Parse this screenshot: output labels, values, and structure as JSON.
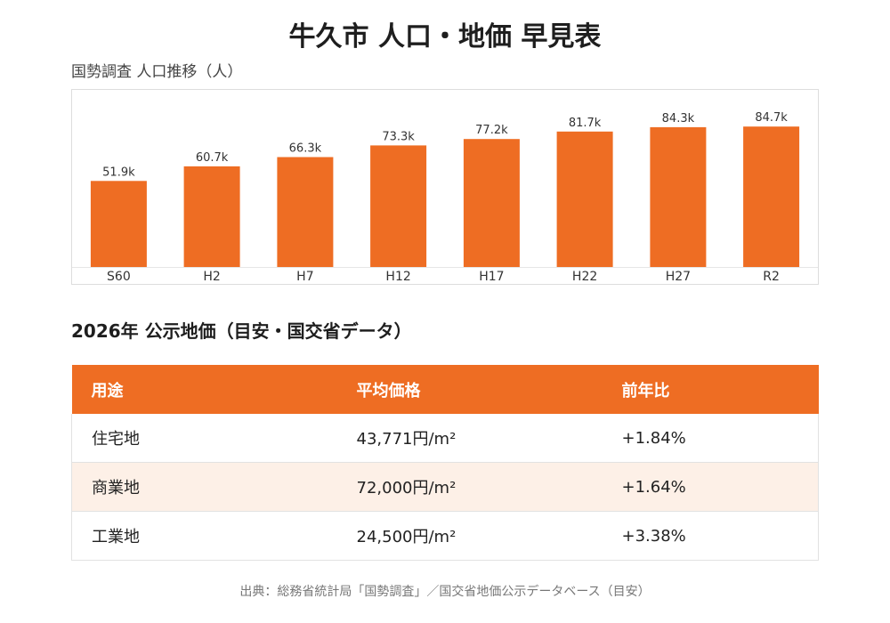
{
  "page": {
    "title": "牛久市 人口・地価 早見表"
  },
  "chart_data": {
    "type": "bar",
    "title": "国勢調査 人口推移（人）",
    "categories": [
      "S60",
      "H2",
      "H7",
      "H12",
      "H17",
      "H22",
      "H27",
      "R2"
    ],
    "values": [
      51900,
      60700,
      66300,
      73300,
      77200,
      81700,
      84300,
      84700
    ],
    "data_labels": [
      "51.9k",
      "60.7k",
      "66.3k",
      "73.3k",
      "77.2k",
      "81.7k",
      "84.3k",
      "84.7k"
    ],
    "color": "#ee6d23",
    "grid": false,
    "ylim": [
      0,
      95000
    ]
  },
  "land_price": {
    "title": "2026年 公示地価（目安・国交省データ）",
    "headers": [
      "用途",
      "平均価格",
      "前年比"
    ],
    "rows": [
      [
        "住宅地",
        "43,771円/m²",
        "+1.84%"
      ],
      [
        "商業地",
        "72,000円/m²",
        "+1.64%"
      ],
      [
        "工業地",
        "24,500円/m²",
        "+3.38%"
      ]
    ],
    "header_color": "#ee6d23",
    "alt_row_color": "#fdf0e7"
  },
  "footer": {
    "source": "出典：総務省統計局「国勢調査」／国交省地価公示データベース（目安）"
  }
}
